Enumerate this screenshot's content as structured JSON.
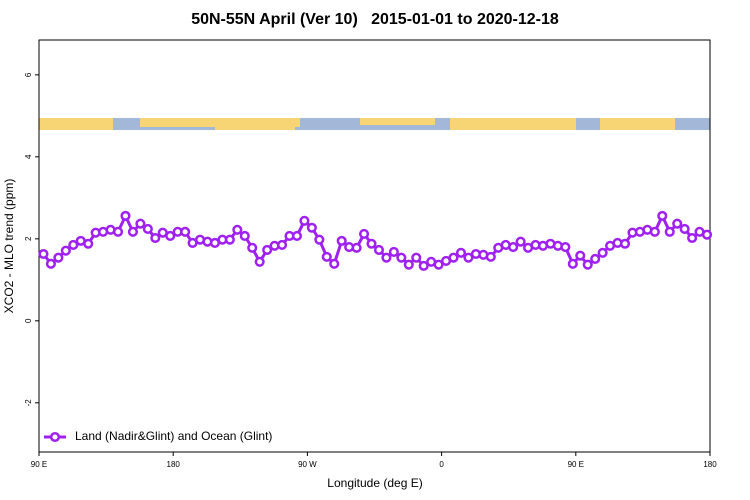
{
  "chart_data": {
    "type": "line",
    "title": "50N-55N April (Ver 10)   2015-01-01 to 2020-12-18",
    "xlabel": "Longitude (deg E)",
    "ylabel": "XCO2 - MLO trend (ppm)",
    "x": [
      93,
      98,
      103,
      108,
      113,
      118,
      123,
      128,
      133,
      138,
      143,
      148,
      153,
      158,
      163,
      168,
      173,
      178,
      183,
      188,
      193,
      198,
      203,
      208,
      213,
      218,
      223,
      228,
      233,
      238,
      243,
      248,
      253,
      258,
      263,
      268,
      273,
      278,
      283,
      288,
      293,
      298,
      303,
      308,
      313,
      318,
      323,
      328,
      333,
      338,
      343,
      348,
      353,
      358,
      363,
      368,
      373,
      378,
      383,
      388,
      393,
      398,
      403,
      408,
      413,
      418,
      423,
      428,
      433,
      438,
      443,
      448,
      453,
      458,
      463,
      468,
      473,
      478,
      483,
      488,
      493,
      498,
      503,
      508,
      513,
      518,
      523,
      528,
      533,
      538
    ],
    "series": [
      {
        "name": "Land (Nadir&Glint) and Ocean (Glint)",
        "color": "#a020f0",
        "values": [
          1.63,
          1.39,
          1.54,
          1.71,
          1.85,
          1.95,
          1.88,
          2.15,
          2.17,
          2.22,
          2.17,
          2.56,
          2.17,
          2.37,
          2.24,
          2.02,
          2.15,
          2.07,
          2.17,
          2.17,
          1.9,
          1.98,
          1.93,
          1.9,
          1.98,
          1.98,
          2.22,
          2.07,
          1.78,
          1.44,
          1.73,
          1.83,
          1.85,
          2.07,
          2.07,
          2.44,
          2.27,
          1.98,
          1.56,
          1.39,
          1.95,
          1.8,
          1.78,
          2.12,
          1.88,
          1.73,
          1.54,
          1.68,
          1.54,
          1.37,
          1.54,
          1.34,
          1.44,
          1.37,
          1.46,
          1.54,
          1.66,
          1.54,
          1.63,
          1.61,
          1.56,
          1.78,
          1.85,
          1.8,
          1.93,
          1.78,
          1.85,
          1.83,
          1.88,
          1.83,
          1.8,
          1.39,
          1.59,
          1.37,
          1.51,
          1.66,
          1.83,
          1.9,
          1.88,
          2.15,
          2.17,
          2.22,
          2.17,
          2.56,
          2.17,
          2.37,
          2.24,
          2.02,
          2.17,
          2.1
        ]
      }
    ],
    "xlim": [
      90,
      540
    ],
    "ylim": [
      -3.2,
      6.85
    ],
    "xticks": [
      {
        "value": 90,
        "label": "90 E"
      },
      {
        "value": 180,
        "label": "180"
      },
      {
        "value": 270,
        "label": "90 W"
      },
      {
        "value": 360,
        "label": "0"
      },
      {
        "value": 450,
        "label": "90 E"
      },
      {
        "value": 540,
        "label": "180"
      }
    ],
    "yticks": [
      -2,
      0,
      2,
      4,
      6
    ],
    "legend": "bottom-left"
  }
}
